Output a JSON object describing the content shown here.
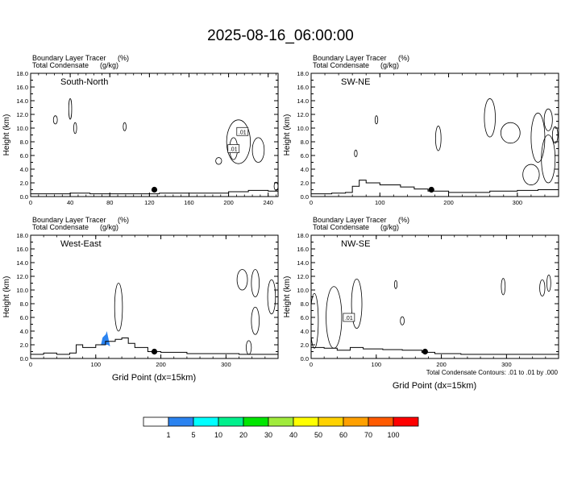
{
  "title": "2025-08-16_06:00:00",
  "panel_header": {
    "line1": "Boundary Layer Tracer",
    "line1_unit": "(%)",
    "line2": "Total Condensate",
    "line2_unit": "(g/kg)"
  },
  "y_axis_label": "Height (km)",
  "x_axis_label": "Grid Point (dx=15km)",
  "contour_note": "Total Condensate Contours: .01 to .01 by .000",
  "contour_label": ".01",
  "colorbar": {
    "colors": [
      "#ffffff",
      "#2b83f0",
      "#00ffff",
      "#00f08c",
      "#00e600",
      "#a0eb3c",
      "#ffff00",
      "#ffd200",
      "#ffa000",
      "#ff5a00",
      "#ff0000"
    ],
    "tick_labels": [
      "1",
      "5",
      "10",
      "20",
      "30",
      "40",
      "50",
      "60",
      "70",
      "100"
    ]
  },
  "chart_data": [
    {
      "type": "contour",
      "name": "South-North",
      "xlim": [
        0,
        250
      ],
      "ylim": [
        0,
        18
      ],
      "x_ticks": [
        "0",
        "40",
        "80",
        "120",
        "160",
        "200",
        "240"
      ],
      "y_ticks": [
        "0.0",
        "2.0",
        "4.0",
        "6.0",
        "8.0",
        "10.0",
        "12.0",
        "14.0",
        "16.0",
        "18.0"
      ],
      "terrain": [
        [
          0,
          0.4
        ],
        [
          20,
          0.4
        ],
        [
          40,
          0.5
        ],
        [
          60,
          0.4
        ],
        [
          100,
          0.4
        ],
        [
          130,
          0.5
        ],
        [
          170,
          0.5
        ],
        [
          200,
          0.7
        ],
        [
          220,
          0.9
        ],
        [
          240,
          0.8
        ],
        [
          250,
          0.8
        ]
      ],
      "marker": {
        "x": 125,
        "y": 1.0
      },
      "blt_fill": []
    },
    {
      "type": "contour",
      "name": "SW-NE",
      "xlim": [
        0,
        360
      ],
      "ylim": [
        0,
        18
      ],
      "x_ticks": [
        "0",
        "100",
        "200",
        "300"
      ],
      "y_ticks": [
        "0.0",
        "2.0",
        "4.0",
        "6.0",
        "8.0",
        "10.0",
        "12.0",
        "14.0",
        "16.0",
        "18.0"
      ],
      "terrain": [
        [
          0,
          0.4
        ],
        [
          30,
          0.5
        ],
        [
          50,
          0.6
        ],
        [
          60,
          1.5
        ],
        [
          70,
          2.4
        ],
        [
          80,
          2.0
        ],
        [
          100,
          1.7
        ],
        [
          130,
          1.4
        ],
        [
          150,
          1.1
        ],
        [
          170,
          0.8
        ],
        [
          200,
          0.6
        ],
        [
          260,
          0.8
        ],
        [
          300,
          0.9
        ],
        [
          330,
          1.0
        ],
        [
          360,
          0.9
        ]
      ],
      "marker": {
        "x": 175,
        "y": 1.0
      },
      "blt_fill": []
    },
    {
      "type": "contour",
      "name": "West-East",
      "xlim": [
        0,
        380
      ],
      "ylim": [
        0,
        18
      ],
      "x_ticks": [
        "0",
        "100",
        "200",
        "300"
      ],
      "y_ticks": [
        "0.0",
        "2.0",
        "4.0",
        "6.0",
        "8.0",
        "10.0",
        "12.0",
        "14.0",
        "16.0",
        "18.0"
      ],
      "terrain": [
        [
          0,
          0.6
        ],
        [
          20,
          0.8
        ],
        [
          40,
          0.6
        ],
        [
          60,
          0.8
        ],
        [
          70,
          2.0
        ],
        [
          80,
          1.6
        ],
        [
          100,
          2.0
        ],
        [
          115,
          2.5
        ],
        [
          130,
          2.8
        ],
        [
          140,
          3.0
        ],
        [
          150,
          2.2
        ],
        [
          160,
          1.6
        ],
        [
          180,
          1.0
        ],
        [
          200,
          0.9
        ],
        [
          240,
          0.7
        ],
        [
          280,
          0.7
        ],
        [
          320,
          0.6
        ],
        [
          380,
          0.6
        ]
      ],
      "marker": {
        "x": 190,
        "y": 1.0
      },
      "blt_fill": [
        {
          "x": [
            108,
            122
          ],
          "y": [
            2.0,
            4.0
          ],
          "range": "1-5"
        }
      ]
    },
    {
      "type": "contour",
      "name": "NW-SE",
      "xlim": [
        0,
        380
      ],
      "ylim": [
        0,
        18
      ],
      "x_ticks": [
        "0",
        "100",
        "200",
        "300"
      ],
      "y_ticks": [
        "0.0",
        "2.0",
        "4.0",
        "6.0",
        "8.0",
        "10.0",
        "12.0",
        "14.0",
        "16.0",
        "18.0"
      ],
      "terrain": [
        [
          0,
          1.6
        ],
        [
          20,
          1.5
        ],
        [
          40,
          1.2
        ],
        [
          60,
          1.6
        ],
        [
          80,
          1.4
        ],
        [
          110,
          1.3
        ],
        [
          140,
          1.2
        ],
        [
          170,
          0.9
        ],
        [
          190,
          0.7
        ],
        [
          230,
          0.6
        ],
        [
          300,
          0.6
        ],
        [
          380,
          0.6
        ]
      ],
      "marker": {
        "x": 175,
        "y": 1.0
      },
      "blt_fill": []
    }
  ]
}
